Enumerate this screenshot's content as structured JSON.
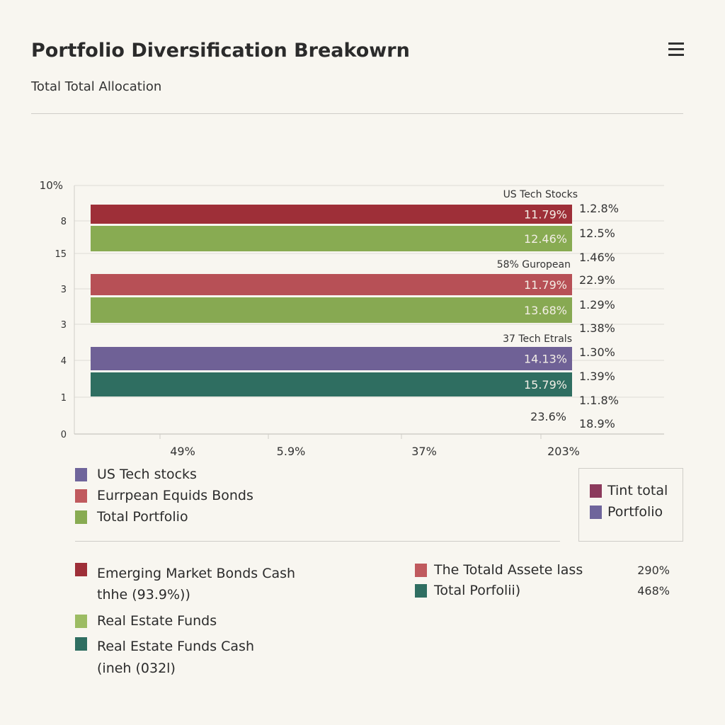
{
  "header": {
    "title": "Portfolio Diversification Breakowrn",
    "subtitle": "Total Total Allocation",
    "menu_icon": "hamburger-menu-icon"
  },
  "chart_data": {
    "type": "bar",
    "orientation": "horizontal",
    "grid": true,
    "y_tick_labels": [
      "10%",
      "8",
      "15",
      "3",
      "3",
      "4",
      "1",
      "0"
    ],
    "x_tick_labels": [
      "49%",
      "5.9%",
      "37%",
      "203%"
    ],
    "group_labels": [
      "US Tech Stocks",
      "58% Guropean",
      "37 Tech Etrals",
      "23.6%"
    ],
    "bars": [
      {
        "label": "11.79%",
        "color": "#9e2f38"
      },
      {
        "label": "12.46%",
        "color": "#88ab52"
      },
      {
        "label": "11.79%",
        "color": "#b75056"
      },
      {
        "label": "13.68%",
        "color": "#87a952"
      },
      {
        "label": "14.13%",
        "color": "#6f6196"
      },
      {
        "label": "15.79%",
        "color": "#2f6e61"
      }
    ],
    "right_labels": [
      "1.2.8%",
      "12.5%",
      "1.46%",
      "22.9%",
      "1.29%",
      "1.38%",
      "1.30%",
      "1.39%",
      "1.1.8%",
      "18.9%"
    ]
  },
  "legend_top": [
    {
      "label": "US Tech stocks",
      "color": "#6f659b"
    },
    {
      "label": "Eurrpean Equids Bonds",
      "color": "#c05a5e"
    },
    {
      "label": "Total Portfolio",
      "color": "#88ab52"
    }
  ],
  "legend_box": [
    {
      "label": "Tint total",
      "color": "#8c3a5c"
    },
    {
      "label": "Portfolio",
      "color": "#6f659b"
    }
  ],
  "legend_bottom_left": [
    {
      "label": "Emerging Market Bonds Cash",
      "sub": "thhe (93.9%))",
      "color": "#9e2f38"
    },
    {
      "label": "Real Estate Funds",
      "color": "#9cbc63"
    },
    {
      "label": "Real Estate Funds Cash",
      "sub": "(ineh (032l)",
      "color": "#2f6e61"
    }
  ],
  "legend_bottom_right": [
    {
      "label": "The Totald Assete lass",
      "value": "290%",
      "color": "#c05a5e"
    },
    {
      "label": "Total Porfolii)",
      "value": "468%",
      "color": "#2f6e61"
    }
  ]
}
